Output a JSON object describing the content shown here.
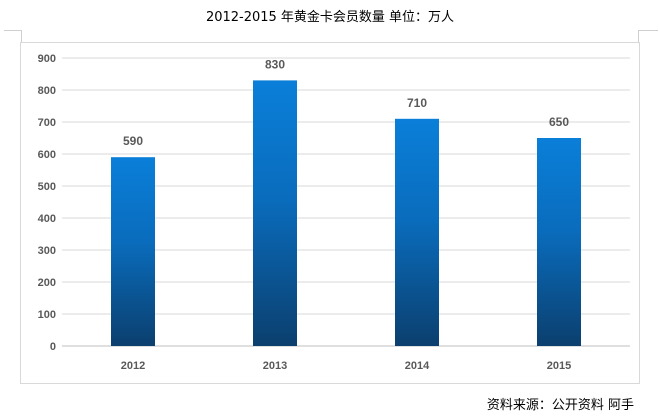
{
  "chart_data": {
    "type": "bar",
    "title": "2012-2015 年黄金卡会员数量  单位：万人",
    "categories": [
      "2012",
      "2013",
      "2014",
      "2015"
    ],
    "values": [
      590,
      830,
      710,
      650
    ],
    "xlabel": "",
    "ylabel": "",
    "ylim": [
      0,
      900
    ],
    "yticks": [
      0,
      100,
      200,
      300,
      400,
      500,
      600,
      700,
      800,
      900
    ],
    "grid": true,
    "legend": "none",
    "bar_color_top": "#0a7fd9",
    "bar_color_bottom": "#0b3f6e"
  },
  "source": "资料来源：公开资料  阿手"
}
